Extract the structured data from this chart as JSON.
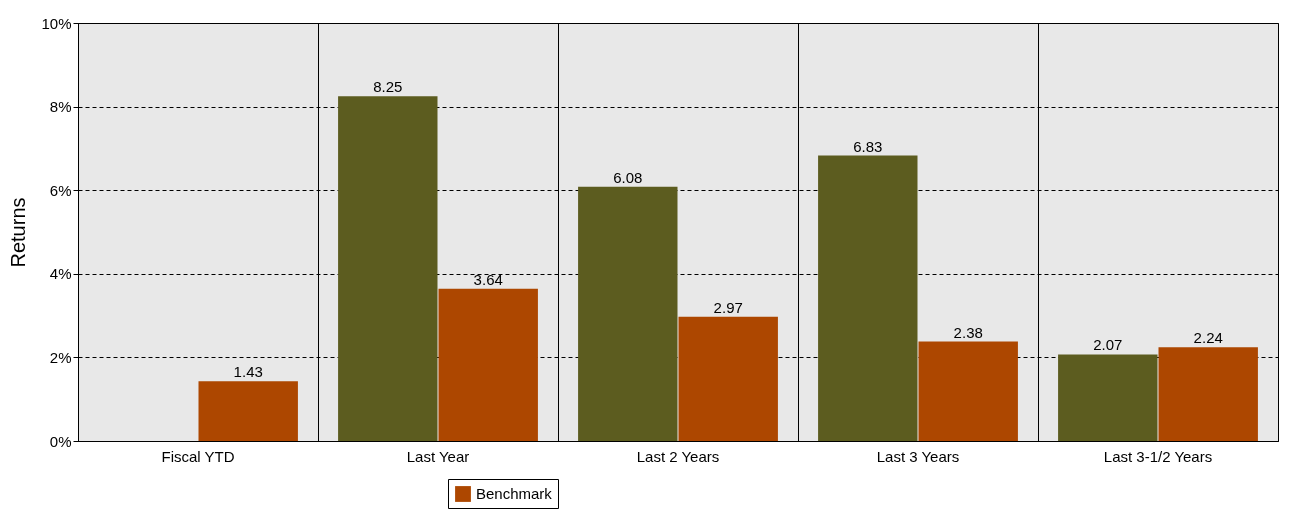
{
  "chart_data": {
    "type": "bar",
    "ylabel": "Returns",
    "categories": [
      "Fiscal YTD",
      "Last Year",
      "Last 2 Years",
      "Last 3 Years",
      "Last 3-1/2 Years"
    ],
    "series": [
      {
        "color": "#5c5c1f",
        "values": [
          null,
          8.25,
          6.08,
          6.83,
          2.07
        ]
      },
      {
        "name": "Benchmark",
        "color": "#ad4700",
        "values": [
          1.43,
          3.64,
          2.97,
          2.38,
          2.24
        ]
      }
    ],
    "ylim": [
      0,
      10
    ],
    "yticks": [
      {
        "value": 0,
        "label": "0%"
      },
      {
        "value": 2,
        "label": "2%"
      },
      {
        "value": 4,
        "label": "4%"
      },
      {
        "value": 6,
        "label": "6%"
      },
      {
        "value": 8,
        "label": "8%"
      },
      {
        "value": 10,
        "label": "10%"
      }
    ],
    "grid": true,
    "legend": "bottom",
    "data_labels": true
  }
}
